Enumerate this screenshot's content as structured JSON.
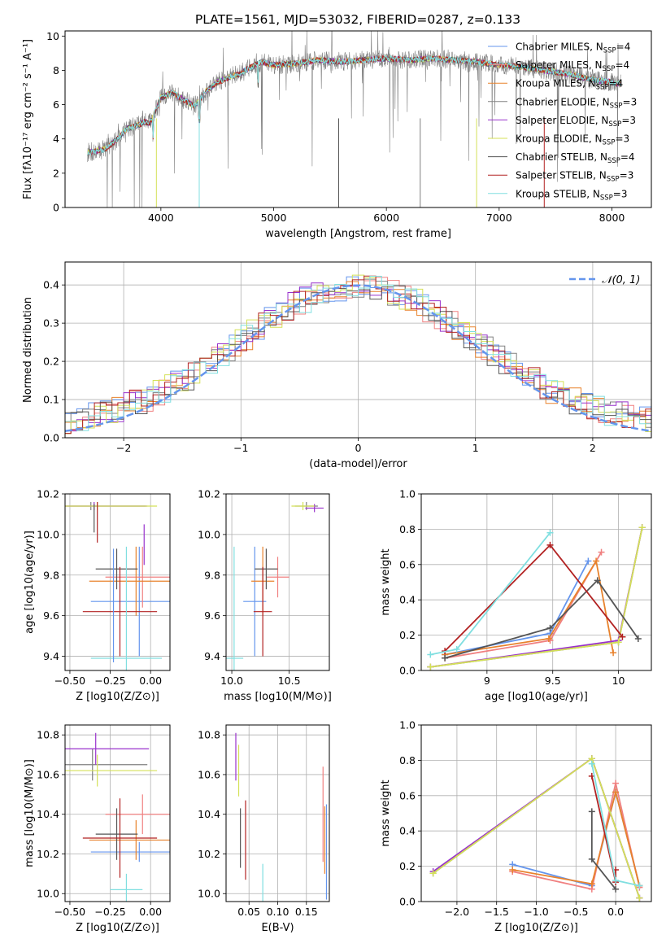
{
  "title": "PLATE=1561, MJD=53032, FIBERID=0287, z=0.133",
  "colors": {
    "grid": "#b0b0b0",
    "axis": "#000000",
    "normal_curve": "#6495ed"
  },
  "chart_data": [
    {
      "id": "spectrum",
      "type": "line",
      "title": "PLATE=1561, MJD=53032, FIBERID=0287, z=0.133",
      "xlabel": "wavelength [Angstrom, rest frame]",
      "ylabel": "Flux [fλ10⁻¹⁷ erg cm⁻² s⁻¹ A⁻¹]",
      "xlim": [
        3150,
        8350
      ],
      "ylim": [
        0,
        10.3
      ],
      "xticks": [
        4000,
        5000,
        6000,
        7000,
        8000
      ],
      "yticks": [
        0,
        2,
        4,
        6,
        8,
        10
      ],
      "grid": false,
      "legend_position": "right",
      "continuum": {
        "x": [
          3350,
          3500,
          3600,
          3700,
          3800,
          3850,
          3900,
          3950,
          4000,
          4100,
          4200,
          4300,
          4400,
          4500,
          4600,
          4700,
          4800,
          4900,
          5000,
          5200,
          5400,
          5600,
          5800,
          6000,
          6200,
          6400,
          6600,
          6800,
          7000,
          7200,
          7400,
          7600,
          7800,
          8000,
          8080
        ],
        "y": [
          3.2,
          3.4,
          3.9,
          4.6,
          4.8,
          5.0,
          4.9,
          5.6,
          6.4,
          6.7,
          6.3,
          5.9,
          6.8,
          7.3,
          7.6,
          7.8,
          8.2,
          8.5,
          8.3,
          8.4,
          8.6,
          8.5,
          8.6,
          8.7,
          8.6,
          8.7,
          8.6,
          8.5,
          8.3,
          8.2,
          8.0,
          7.8,
          7.5,
          7.3,
          7.2
        ]
      },
      "series": [
        {
          "name": "Chabrier MILES, N_SSP=4",
          "color": "#6495ed"
        },
        {
          "name": "Salpeter MILES, N_SSP=4",
          "color": "#f08080"
        },
        {
          "name": "Kroupa MILES, N_SSP=4",
          "color": "#e8822c"
        },
        {
          "name": "Chabrier ELODIE, N_SSP=3",
          "color": "#808080"
        },
        {
          "name": "Salpeter ELODIE, N_SSP=3",
          "color": "#9932cc"
        },
        {
          "name": "Kroupa ELODIE, N_SSP=3",
          "color": "#d4e157"
        },
        {
          "name": "Chabrier STELIB, N_SSP=4",
          "color": "#555555"
        },
        {
          "name": "Salpeter STELIB, N_SSP=3",
          "color": "#b22222"
        },
        {
          "name": "Kroupa STELIB, N_SSP=3",
          "color": "#80dfe0"
        }
      ]
    },
    {
      "id": "residuals",
      "type": "bar",
      "xlabel": "(data-model)/error",
      "ylabel": "Normed distribution",
      "xlim": [
        -2.5,
        2.5
      ],
      "ylim": [
        0,
        0.46
      ],
      "xticks": [
        -2,
        -1,
        0,
        1,
        2
      ],
      "xtick_labels": [
        "−2",
        "−1",
        "0",
        "1",
        "2"
      ],
      "yticks": [
        0.0,
        0.1,
        0.2,
        0.3,
        0.4
      ],
      "grid": true,
      "legend_position": "upper right",
      "curve_name": "𝒩(0, 1)",
      "bin_width": 0.1
    },
    {
      "id": "age-vs-Z",
      "type": "scatter",
      "xlabel": "Z [log10(Z/Z⊙)]",
      "ylabel": "age  [log10(age/yr)]",
      "xlim": [
        -0.53,
        0.12
      ],
      "ylim": [
        9.33,
        10.2
      ],
      "xticks": [
        -0.5,
        -0.25,
        0.0
      ],
      "xtick_labels": [
        "−0.50",
        "−0.25",
        "0.00"
      ],
      "yticks": [
        9.4,
        9.6,
        9.8,
        10.0,
        10.2
      ],
      "grid": true,
      "points": [
        {
          "color": "#6495ed",
          "x": -0.07,
          "xerr": 0.3,
          "y": 9.67,
          "yerr": 0.27
        },
        {
          "color": "#f08080",
          "x": -0.05,
          "xerr": 0.23,
          "y": 9.79,
          "yerr": 0.15
        },
        {
          "color": "#e8822c",
          "x": -0.09,
          "xerr": 0.29,
          "y": 9.77,
          "yerr": 0.17
        },
        {
          "color": "#808080",
          "x": -0.37,
          "xerr": 0.34,
          "y": 10.14,
          "yerr": 0.02
        },
        {
          "color": "#9932cc",
          "x": -0.35,
          "xerr": 0.33,
          "y": 10.14,
          "yerr": 0.02
        },
        {
          "color": "#d4e157",
          "x": -0.33,
          "xerr": 0.37,
          "y": 10.14,
          "yerr": 0.02
        },
        {
          "color": "#555555",
          "x": -0.21,
          "xerr": 0.13,
          "y": 9.83,
          "yerr": 0.1
        },
        {
          "color": "#b22222",
          "x": -0.19,
          "xerr": 0.23,
          "y": 9.62,
          "yerr": 0.22
        },
        {
          "color": "#80dfe0",
          "x": -0.15,
          "xerr": 0.22,
          "y": 9.39,
          "yerr": 0.55
        },
        {
          "color": "#555555",
          "x": -0.35,
          "xerr": 0.0,
          "y": 10.08,
          "yerr": 0.07
        },
        {
          "color": "#b22222",
          "x": -0.33,
          "xerr": 0.0,
          "y": 10.06,
          "yerr": 0.1
        },
        {
          "color": "#6495ed",
          "x": -0.23,
          "xerr": 0.0,
          "y": 9.65,
          "yerr": 0.28
        },
        {
          "color": "#9932cc",
          "x": -0.04,
          "xerr": 0.0,
          "y": 9.95,
          "yerr": 0.1
        }
      ]
    },
    {
      "id": "age-vs-mass",
      "type": "scatter",
      "xlabel": "mass [log10(M/M⊙)]",
      "ylabel": "",
      "xlim": [
        9.95,
        10.85
      ],
      "ylim": [
        9.33,
        10.2
      ],
      "xticks": [
        10.0,
        10.5
      ],
      "xtick_labels": [
        "10.0",
        "10.5"
      ],
      "yticks": [
        9.4,
        9.6,
        9.8,
        10.0,
        10.2
      ],
      "grid": true,
      "points": [
        {
          "color": "#6495ed",
          "x": 10.2,
          "xerr": 0.1,
          "y": 9.67,
          "yerr": 0.27
        },
        {
          "color": "#f08080",
          "x": 10.4,
          "xerr": 0.1,
          "y": 9.79,
          "yerr": 0.1
        },
        {
          "color": "#e8822c",
          "x": 10.27,
          "xerr": 0.1,
          "y": 9.77,
          "yerr": 0.17
        },
        {
          "color": "#808080",
          "x": 10.65,
          "xerr": 0.1,
          "y": 10.14,
          "yerr": 0.02
        },
        {
          "color": "#9932cc",
          "x": 10.72,
          "xerr": 0.08,
          "y": 10.13,
          "yerr": 0.02
        },
        {
          "color": "#d4e157",
          "x": 10.62,
          "xerr": 0.1,
          "y": 10.14,
          "yerr": 0.02
        },
        {
          "color": "#555555",
          "x": 10.3,
          "xerr": 0.1,
          "y": 9.83,
          "yerr": 0.1
        },
        {
          "color": "#b22222",
          "x": 10.27,
          "xerr": 0.08,
          "y": 9.62,
          "yerr": 0.22
        },
        {
          "color": "#80dfe0",
          "x": 10.02,
          "xerr": 0.08,
          "y": 9.39,
          "yerr": 0.55
        }
      ]
    },
    {
      "id": "weight-vs-age",
      "type": "line",
      "xlabel": "age  [log10(age/yr)]",
      "ylabel": "mass weight",
      "xlim": [
        8.5,
        10.25
      ],
      "ylim": [
        0,
        1.0
      ],
      "xticks": [
        9.0,
        9.5,
        10.0
      ],
      "yticks": [
        0.0,
        0.2,
        0.4,
        0.6,
        0.8,
        1.0
      ],
      "grid": true,
      "series": [
        {
          "color": "#6495ed",
          "x": [
            8.68,
            9.48,
            9.77
          ],
          "y": [
            0.09,
            0.21,
            0.62
          ]
        },
        {
          "color": "#f08080",
          "x": [
            8.68,
            9.48,
            9.87
          ],
          "y": [
            0.07,
            0.17,
            0.67
          ]
        },
        {
          "color": "#e8822c",
          "x": [
            8.68,
            9.47,
            9.83,
            9.96
          ],
          "y": [
            0.09,
            0.18,
            0.62,
            0.1
          ]
        },
        {
          "color": "#808080",
          "x": [
            8.57,
            10.0,
            10.18
          ],
          "y": [
            0.02,
            0.16,
            0.81
          ]
        },
        {
          "color": "#9932cc",
          "x": [
            8.57,
            10.0,
            10.18
          ],
          "y": [
            0.02,
            0.17,
            0.81
          ]
        },
        {
          "color": "#d4e157",
          "x": [
            8.57,
            10.0,
            10.18
          ],
          "y": [
            0.02,
            0.16,
            0.81
          ]
        },
        {
          "color": "#555555",
          "x": [
            8.68,
            9.48,
            9.84,
            10.15
          ],
          "y": [
            0.07,
            0.24,
            0.51,
            0.18
          ]
        },
        {
          "color": "#b22222",
          "x": [
            8.68,
            9.48,
            10.03
          ],
          "y": [
            0.11,
            0.71,
            0.19
          ]
        },
        {
          "color": "#80dfe0",
          "x": [
            8.57,
            8.77,
            9.48
          ],
          "y": [
            0.09,
            0.12,
            0.78
          ]
        }
      ]
    },
    {
      "id": "mass-vs-Z",
      "type": "scatter",
      "xlabel": "Z [log10(Z/Z⊙)]",
      "ylabel": "mass [log10(M/M⊙)]",
      "xlim": [
        -0.53,
        0.12
      ],
      "ylim": [
        9.96,
        10.85
      ],
      "xticks": [
        -0.5,
        -0.25,
        0.0
      ],
      "xtick_labels": [
        "−0.50",
        "−0.25",
        "0.00"
      ],
      "yticks": [
        10.0,
        10.2,
        10.4,
        10.6,
        10.8
      ],
      "grid": true,
      "points": [
        {
          "color": "#6495ed",
          "x": -0.07,
          "xerr": 0.3,
          "y": 10.21,
          "yerr": 0.05
        },
        {
          "color": "#f08080",
          "x": -0.05,
          "xerr": 0.23,
          "y": 10.4,
          "yerr": 0.1
        },
        {
          "color": "#e8822c",
          "x": -0.09,
          "xerr": 0.29,
          "y": 10.27,
          "yerr": 0.1
        },
        {
          "color": "#808080",
          "x": -0.36,
          "xerr": 0.34,
          "y": 10.65,
          "yerr": 0.08
        },
        {
          "color": "#9932cc",
          "x": -0.34,
          "xerr": 0.33,
          "y": 10.73,
          "yerr": 0.08
        },
        {
          "color": "#d4e157",
          "x": -0.33,
          "xerr": 0.37,
          "y": 10.62,
          "yerr": 0.08
        },
        {
          "color": "#555555",
          "x": -0.21,
          "xerr": 0.13,
          "y": 10.3,
          "yerr": 0.13
        },
        {
          "color": "#b22222",
          "x": -0.19,
          "xerr": 0.23,
          "y": 10.28,
          "yerr": 0.2
        },
        {
          "color": "#80dfe0",
          "x": -0.15,
          "xerr": 0.1,
          "y": 10.02,
          "yerr": 0.08
        }
      ]
    },
    {
      "id": "mass-vs-EBV",
      "type": "scatter",
      "xlabel": "E(B-V)",
      "ylabel": "",
      "xlim": [
        0.01,
        0.19
      ],
      "ylim": [
        9.96,
        10.85
      ],
      "xticks": [
        0.05,
        0.1,
        0.15
      ],
      "xtick_labels": [
        "0.05",
        "0.10",
        "0.15"
      ],
      "yticks": [
        10.0,
        10.2,
        10.4,
        10.6,
        10.8
      ],
      "grid": true,
      "points": [
        {
          "color": "#9932cc",
          "x": 0.027,
          "y": 10.69,
          "yerr": 0.12
        },
        {
          "color": "#d4e157",
          "x": 0.032,
          "y": 10.62,
          "yerr": 0.13
        },
        {
          "color": "#555555",
          "x": 0.035,
          "y": 10.28,
          "yerr": 0.15
        },
        {
          "color": "#b22222",
          "x": 0.044,
          "y": 10.27,
          "yerr": 0.2
        },
        {
          "color": "#80dfe0",
          "x": 0.074,
          "y": 10.02,
          "yerr": 0.13
        },
        {
          "color": "#f08080",
          "x": 0.179,
          "y": 10.4,
          "yerr": 0.24
        },
        {
          "color": "#e8822c",
          "x": 0.182,
          "y": 10.27,
          "yerr": 0.17
        },
        {
          "color": "#6495ed",
          "x": 0.185,
          "y": 10.21,
          "yerr": 0.24
        }
      ]
    },
    {
      "id": "weight-vs-Z",
      "type": "line",
      "xlabel": "Z [log10(Z/Z⊙)]",
      "ylabel": "mass weight",
      "xlim": [
        -2.45,
        0.45
      ],
      "ylim": [
        0,
        1.0
      ],
      "xticks": [
        -2.0,
        -1.5,
        -1.0,
        -0.5,
        0.0
      ],
      "xtick_labels": [
        "−2.0",
        "−1.5",
        "−1.0",
        "−0.5",
        "0.0"
      ],
      "yticks": [
        0.0,
        0.2,
        0.4,
        0.6,
        0.8,
        1.0
      ],
      "grid": true,
      "series": [
        {
          "color": "#6495ed",
          "x": [
            -1.3,
            -0.3,
            0.0,
            0.3
          ],
          "y": [
            0.21,
            0.09,
            0.62,
            0.09
          ]
        },
        {
          "color": "#f08080",
          "x": [
            -1.3,
            -0.3,
            0.0,
            0.3
          ],
          "y": [
            0.17,
            0.07,
            0.67,
            0.08
          ]
        },
        {
          "color": "#e8822c",
          "x": [
            -1.3,
            -0.3,
            0.0,
            0.3
          ],
          "y": [
            0.18,
            0.1,
            0.62,
            0.09
          ]
        },
        {
          "color": "#808080",
          "x": [
            -2.3,
            -0.3,
            0.3
          ],
          "y": [
            0.16,
            0.81,
            0.02
          ]
        },
        {
          "color": "#9932cc",
          "x": [
            -2.3,
            -0.3,
            0.3
          ],
          "y": [
            0.17,
            0.81,
            0.02
          ]
        },
        {
          "color": "#d4e157",
          "x": [
            -2.3,
            -0.3,
            0.3
          ],
          "y": [
            0.16,
            0.81,
            0.02
          ]
        },
        {
          "color": "#555555",
          "x": [
            -0.3,
            -0.3,
            0.0
          ],
          "y": [
            0.51,
            0.24,
            0.07
          ]
        },
        {
          "color": "#b22222",
          "x": [
            -0.3,
            0.0,
            0.0
          ],
          "y": [
            0.71,
            0.11,
            0.18
          ]
        },
        {
          "color": "#80dfe0",
          "x": [
            -0.3,
            0.0,
            0.3
          ],
          "y": [
            0.78,
            0.12,
            0.09
          ]
        }
      ]
    }
  ]
}
